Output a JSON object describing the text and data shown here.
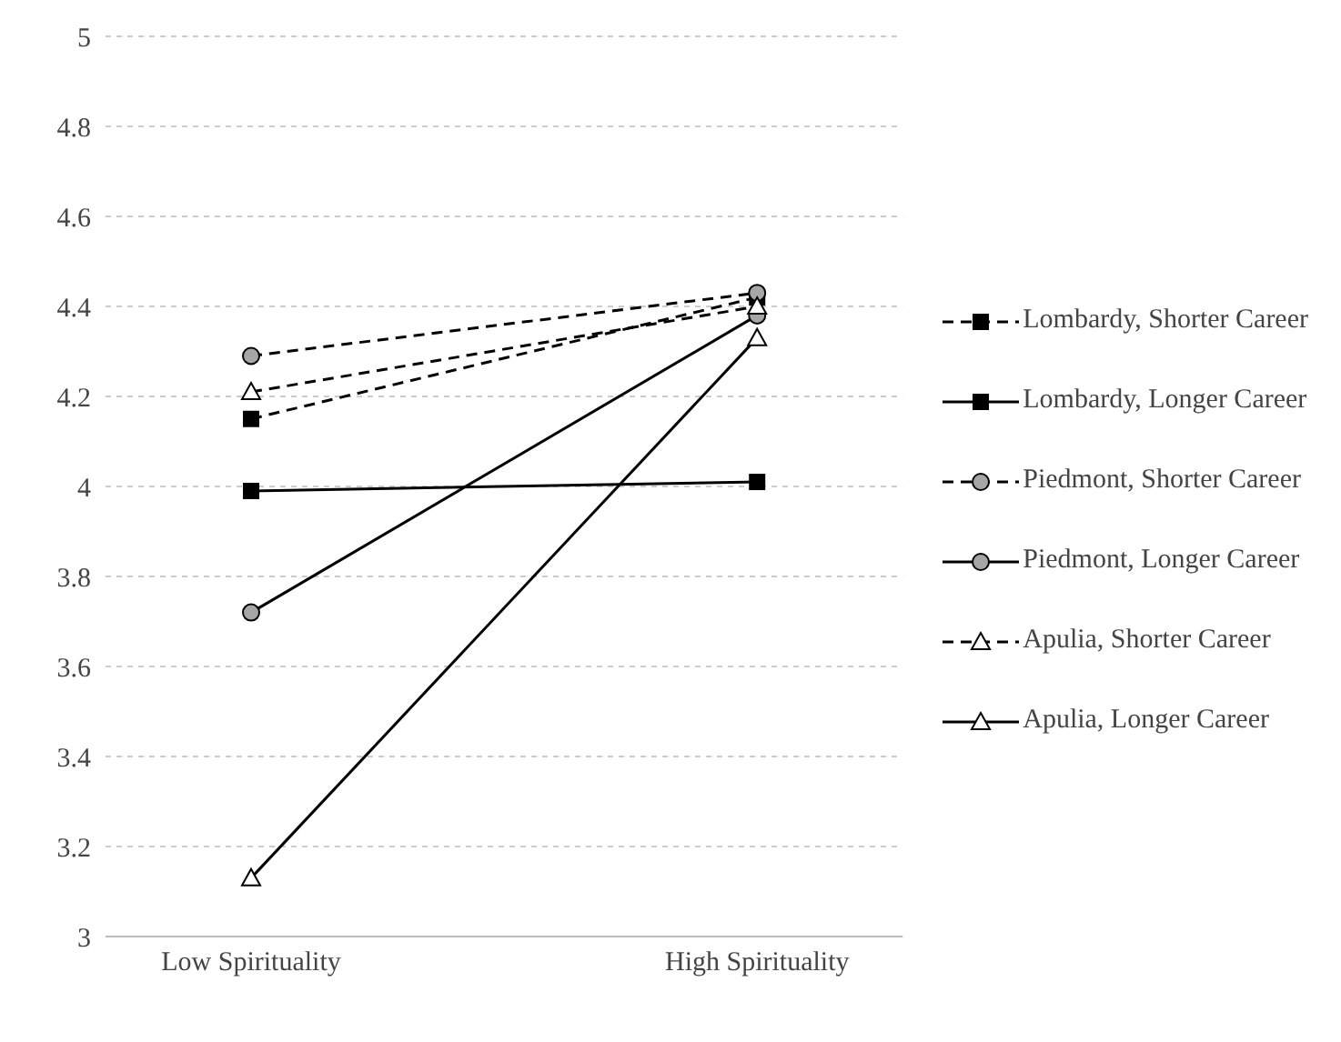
{
  "chart_data": {
    "type": "line",
    "categories": [
      "Low Spirituality",
      "High Spirituality"
    ],
    "series": [
      {
        "name": "Lombardy, Shorter Career",
        "color": "#000000",
        "marker": "square",
        "line_style": "dashed",
        "values": [
          4.15,
          4.42
        ]
      },
      {
        "name": "Lombardy, Longer Career",
        "color": "#000000",
        "marker": "square",
        "line_style": "solid",
        "values": [
          3.99,
          4.01
        ]
      },
      {
        "name": "Piedmont, Shorter Career",
        "color": "#000000",
        "marker": "circle",
        "line_style": "dashed",
        "values": [
          4.29,
          4.43
        ]
      },
      {
        "name": "Piedmont, Longer Career",
        "color": "#000000",
        "marker": "circle",
        "line_style": "solid",
        "values": [
          3.72,
          4.38
        ]
      },
      {
        "name": "Apulia, Shorter Career",
        "color": "#000000",
        "marker": "triangle",
        "line_style": "dashed",
        "values": [
          4.21,
          4.4
        ]
      },
      {
        "name": "Apulia, Longer Career",
        "color": "#000000",
        "marker": "triangle",
        "line_style": "solid",
        "values": [
          3.13,
          4.33
        ]
      }
    ],
    "ylim": [
      3,
      5
    ],
    "yticks": [
      3,
      3.2,
      3.4,
      3.6,
      3.8,
      4,
      4.2,
      4.4,
      4.6,
      4.8,
      5
    ],
    "grid": "y",
    "legend": "right"
  }
}
